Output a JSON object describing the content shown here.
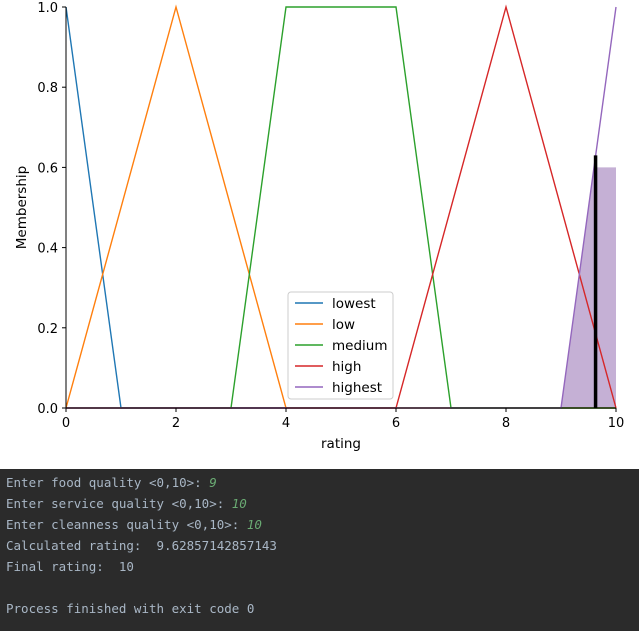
{
  "chart_data": {
    "type": "line",
    "xlabel": "rating",
    "ylabel": "Membership",
    "xlim": [
      0,
      10
    ],
    "ylim": [
      0,
      1
    ],
    "xticks": [
      "0",
      "2",
      "4",
      "6",
      "8",
      "10"
    ],
    "yticks": [
      "0.0",
      "0.2",
      "0.4",
      "0.6",
      "0.8",
      "1.0"
    ],
    "legend_position": "bottom-center",
    "series": [
      {
        "name": "lowest",
        "color": "#1f77b4",
        "x": [
          0,
          0,
          1,
          10
        ],
        "y": [
          1,
          1,
          0,
          0
        ]
      },
      {
        "name": "low",
        "color": "#ff7f0e",
        "x": [
          0,
          2,
          4,
          10
        ],
        "y": [
          0,
          1,
          0,
          0
        ]
      },
      {
        "name": "medium",
        "color": "#2ca02c",
        "x": [
          0,
          3,
          4,
          6,
          7,
          10
        ],
        "y": [
          0,
          0,
          1,
          1,
          0,
          0
        ]
      },
      {
        "name": "high",
        "color": "#d62728",
        "x": [
          0,
          6,
          8,
          10
        ],
        "y": [
          0,
          0,
          1,
          0
        ]
      },
      {
        "name": "highest",
        "color": "#9467bd",
        "x": [
          0,
          9,
          10
        ],
        "y": [
          0,
          0,
          1
        ]
      }
    ],
    "aggregated_fill": {
      "color": "#c5b0d5",
      "x": [
        9,
        9.6,
        10,
        10
      ],
      "y": [
        0,
        0.6,
        0.6,
        0
      ]
    },
    "crisp_output": {
      "x": 9.62857142857143,
      "y": 0.63,
      "color": "#000000"
    }
  },
  "console": {
    "lines": [
      {
        "prompt": "Enter food quality <0,10>: ",
        "input": "9"
      },
      {
        "prompt": "Enter service quality <0,10>: ",
        "input": "10"
      },
      {
        "prompt": "Enter cleanness quality <0,10>: ",
        "input": "10"
      },
      {
        "prompt": "Calculated rating:  9.62857142857143",
        "input": ""
      },
      {
        "prompt": "Final rating:  10",
        "input": ""
      },
      {
        "prompt": "",
        "input": ""
      },
      {
        "prompt": "Process finished with exit code 0",
        "input": ""
      }
    ]
  }
}
